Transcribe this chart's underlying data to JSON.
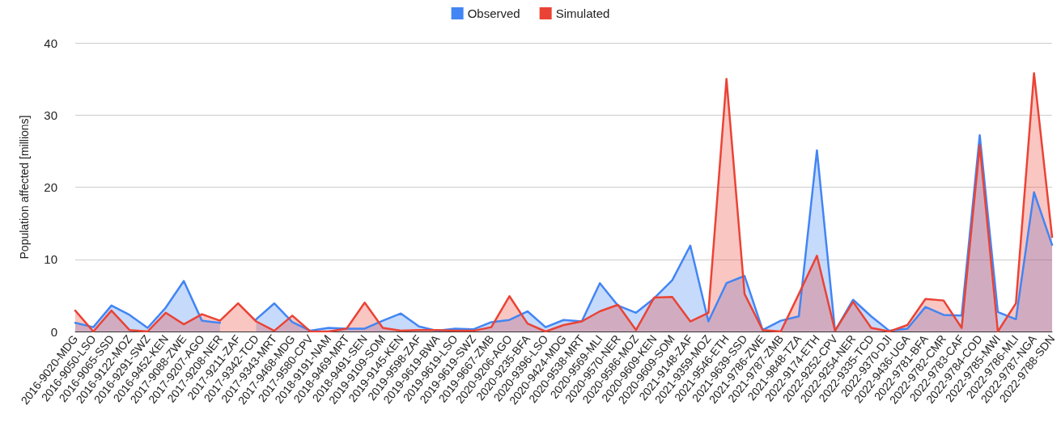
{
  "chart_data": {
    "type": "area",
    "ylabel": "Population affected [millions]",
    "categories": [
      "2016-9020-MDG",
      "2016-9050-LSO",
      "2016-9065-SSD",
      "2016-9122-MOZ",
      "2016-9291-SWZ",
      "2016-9452-KEN",
      "2017-9088-ZWE",
      "2017-9207-AGO",
      "2017-9208-NER",
      "2017-9211-ZAF",
      "2017-9342-TCD",
      "2017-9343-MRT",
      "2017-9468-MDG",
      "2017-9580-CPV",
      "2018-9191-NAM",
      "2018-9469-MRT",
      "2018-9491-SEN",
      "2019-9109-SOM",
      "2019-9145-KEN",
      "2019-9598-ZAF",
      "2019-9619-BWA",
      "2019-9619-LSO",
      "2019-9619-SWZ",
      "2019-9667-ZMB",
      "2020-9206-AGO",
      "2020-9235-BFA",
      "2020-9396-LSO",
      "2020-9424-MDG",
      "2020-9538-MRT",
      "2020-9569-MLI",
      "2020-9570-NER",
      "2020-9586-MOZ",
      "2020-9609-KEN",
      "2020-9609-SOM",
      "2021-9148-ZAF",
      "2021-9359-MOZ",
      "2021-9546-ETH",
      "2021-9639-SSD",
      "2021-9786-ZWE",
      "2021-9787-ZMB",
      "2021-9848-TZA",
      "2022-9174-ETH",
      "2022-9252-CPV",
      "2022-9254-NER",
      "2022-9335-TCD",
      "2022-9370-DJI",
      "2022-9436-UGA",
      "2022-9781-BFA",
      "2022-9782-CMR",
      "2022-9783-CAF",
      "2022-9784-COD",
      "2022-9785-MWI",
      "2022-9786-MLI",
      "2022-9787-NGA",
      "2022-9788-SDN"
    ],
    "series": [
      {
        "name": "Observed",
        "color": "#4285f4",
        "values": [
          1.2,
          0.6,
          3.6,
          2.3,
          0.5,
          3.3,
          7.0,
          1.5,
          1.2,
          null,
          1.7,
          3.9,
          1.3,
          0.1,
          0.5,
          0.4,
          0.4,
          1.5,
          2.5,
          0.7,
          0.1,
          0.4,
          0.3,
          1.3,
          1.6,
          2.8,
          0.6,
          1.6,
          1.4,
          6.7,
          3.6,
          2.6,
          4.6,
          7.1,
          11.9,
          1.4,
          6.7,
          7.7,
          0.2,
          1.5,
          2.1,
          25.1,
          0.1,
          4.4,
          2.1,
          0.1,
          0.4,
          3.4,
          2.3,
          2.2,
          27.2,
          2.7,
          1.7,
          19.3,
          12.0
        ]
      },
      {
        "name": "Simulated",
        "color": "#ea4335",
        "values": [
          2.9,
          0.0,
          2.9,
          0.2,
          0.0,
          2.6,
          1.0,
          2.4,
          1.5,
          3.9,
          1.4,
          0.1,
          2.2,
          0.0,
          0.0,
          0.4,
          4.0,
          0.5,
          0.1,
          0.2,
          0.2,
          0.1,
          0.1,
          0.6,
          4.9,
          1.1,
          0.0,
          0.9,
          1.4,
          2.8,
          3.7,
          0.2,
          4.7,
          4.8,
          1.4,
          2.6,
          35.0,
          5.2,
          0.2,
          0.0,
          5.2,
          10.5,
          0.1,
          4.1,
          0.5,
          0.0,
          0.9,
          4.5,
          4.3,
          0.5,
          25.8,
          0.0,
          3.9,
          35.8,
          13.1
        ]
      }
    ],
    "ylim": [
      0,
      40
    ],
    "yticks": [
      0,
      10,
      20,
      30,
      40
    ],
    "grid": "y",
    "legend": "top",
    "marker": "none",
    "line_style": "solid"
  }
}
